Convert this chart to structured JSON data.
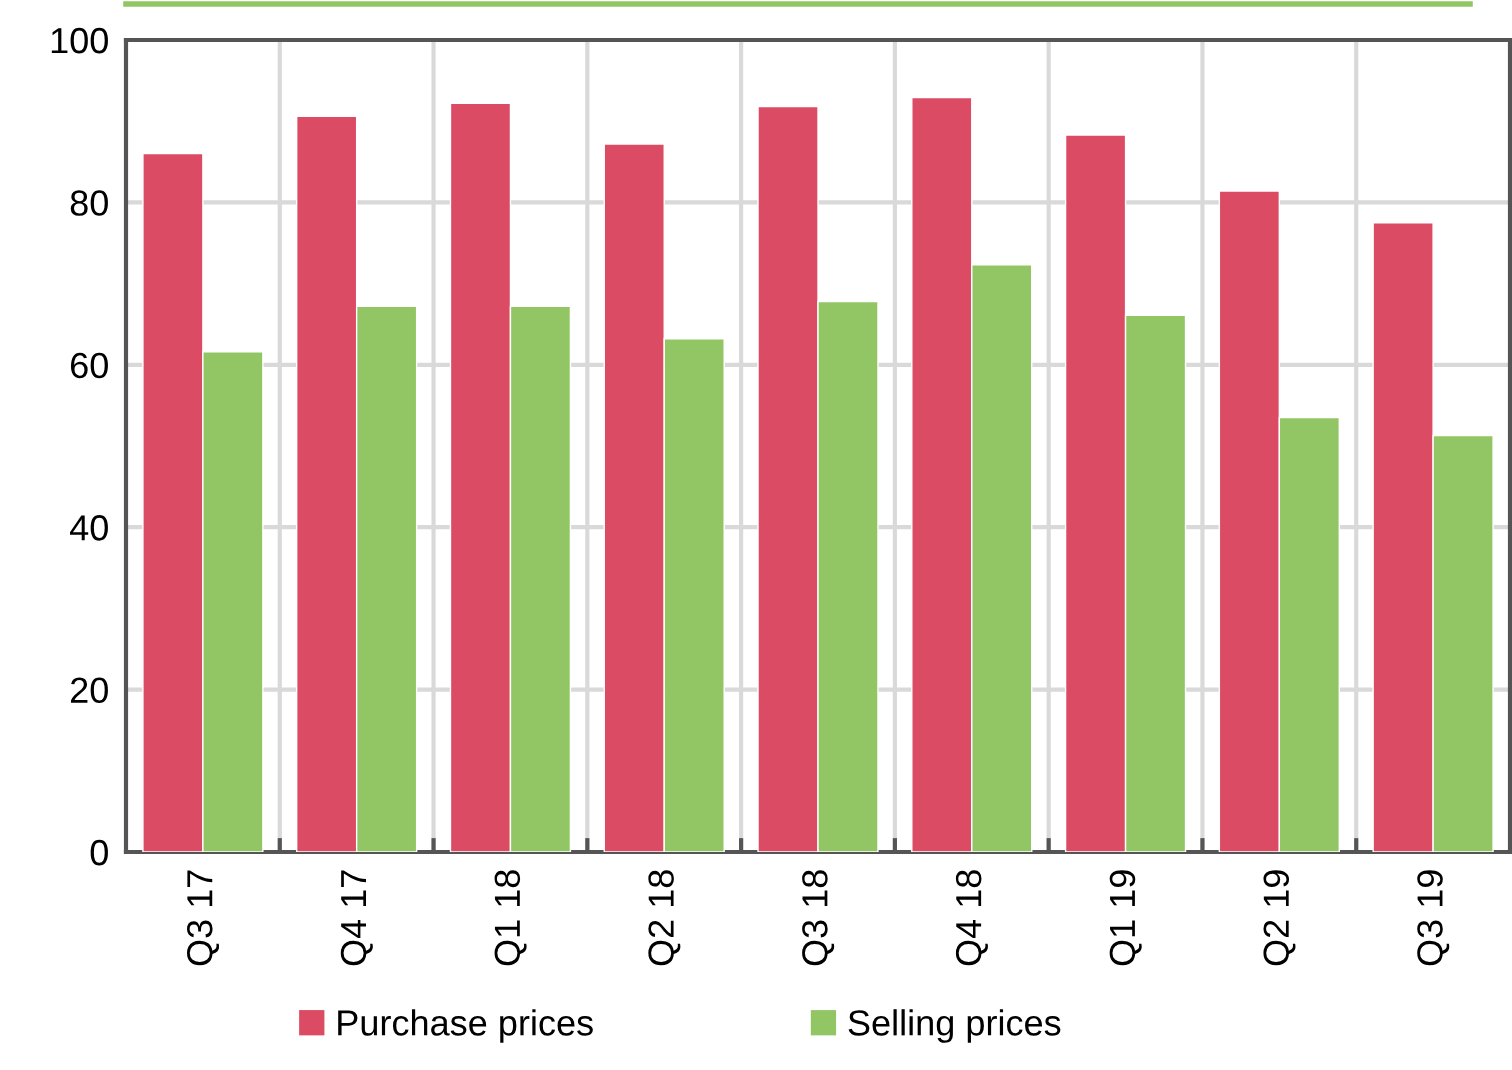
{
  "chart_data": {
    "type": "bar",
    "categories": [
      "Q3 17",
      "Q4 17",
      "Q1 18",
      "Q2 18",
      "Q3 18",
      "Q4 18",
      "Q1 19",
      "Q2 19",
      "Q3 19"
    ],
    "series": [
      {
        "name": "Purchase prices",
        "color": "#db4b64",
        "values": [
          86.0,
          90.6,
          92.2,
          87.2,
          91.8,
          92.9,
          88.3,
          81.4,
          77.5
        ]
      },
      {
        "name": "Selling prices",
        "color": "#92c664",
        "values": [
          61.6,
          67.2,
          67.2,
          63.2,
          67.8,
          72.3,
          66.1,
          53.5,
          51.3
        ]
      }
    ],
    "ylim": [
      0,
      100
    ],
    "yticks": [
      0,
      20,
      40,
      60,
      80,
      100
    ],
    "grid": true,
    "legend": "bottom"
  }
}
